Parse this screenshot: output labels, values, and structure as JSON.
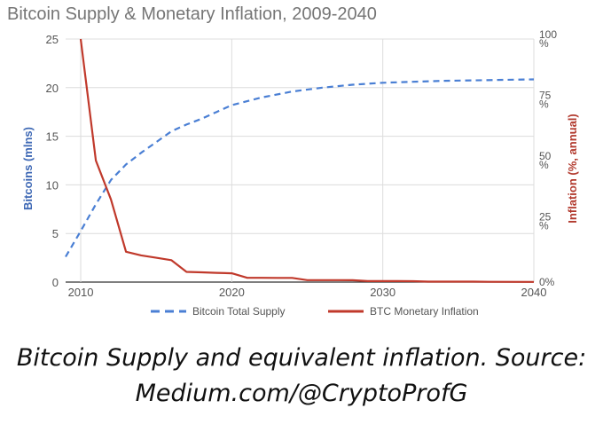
{
  "chart_data": {
    "type": "line",
    "title": "Bitcoin Supply & Monetary Inflation, 2009-2040",
    "xlabel": "",
    "y_left_label": "Bitcoins (mlns)",
    "y_right_label": "Inflation (%, annual)",
    "xlim": [
      2009,
      2040
    ],
    "ylim_left": [
      0,
      25
    ],
    "ylim_right": [
      0,
      100
    ],
    "x_ticks": [
      "2010",
      "2020",
      "2030",
      "2040"
    ],
    "y_left_ticks": [
      "0",
      "5",
      "10",
      "15",
      "20",
      "25"
    ],
    "y_right_ticks": [
      {
        "value": 0,
        "lines": [
          "0%"
        ]
      },
      {
        "value": 25,
        "lines": [
          "25",
          "%"
        ]
      },
      {
        "value": 50,
        "lines": [
          "50",
          "%"
        ]
      },
      {
        "value": 75,
        "lines": [
          "75",
          "%"
        ]
      },
      {
        "value": 100,
        "lines": [
          "100",
          "%"
        ]
      }
    ],
    "grid": true,
    "legend_position": "bottom",
    "series": [
      {
        "name": "Bitcoin Total Supply",
        "axis": "left",
        "style": "dashed",
        "color": "#4a7fd4",
        "points": [
          [
            2009,
            2.6
          ],
          [
            2010,
            5.25
          ],
          [
            2011,
            8.0
          ],
          [
            2012,
            10.5
          ],
          [
            2013,
            12.1
          ],
          [
            2014,
            13.3
          ],
          [
            2015,
            14.4
          ],
          [
            2016,
            15.5
          ],
          [
            2017,
            16.2
          ],
          [
            2018,
            16.8
          ],
          [
            2019,
            17.5
          ],
          [
            2020,
            18.2
          ],
          [
            2022,
            19.0
          ],
          [
            2024,
            19.6
          ],
          [
            2026,
            20.0
          ],
          [
            2028,
            20.3
          ],
          [
            2030,
            20.5
          ],
          [
            2032,
            20.6
          ],
          [
            2034,
            20.7
          ],
          [
            2036,
            20.75
          ],
          [
            2038,
            20.8
          ],
          [
            2040,
            20.85
          ]
        ]
      },
      {
        "name": "BTC Monetary Inflation",
        "axis": "right",
        "style": "solid",
        "color": "#c0392b",
        "points": [
          [
            2010,
            100
          ],
          [
            2011,
            50
          ],
          [
            2012,
            34
          ],
          [
            2013,
            12.5
          ],
          [
            2014,
            11
          ],
          [
            2015,
            10
          ],
          [
            2016,
            9
          ],
          [
            2017,
            4.2
          ],
          [
            2018,
            4
          ],
          [
            2019,
            3.8
          ],
          [
            2020,
            3.6
          ],
          [
            2021,
            1.8
          ],
          [
            2022,
            1.75
          ],
          [
            2023,
            1.7
          ],
          [
            2024,
            1.7
          ],
          [
            2025,
            0.8
          ],
          [
            2026,
            0.8
          ],
          [
            2027,
            0.8
          ],
          [
            2028,
            0.75
          ],
          [
            2029,
            0.4
          ],
          [
            2030,
            0.4
          ],
          [
            2031,
            0.4
          ],
          [
            2032,
            0.35
          ],
          [
            2033,
            0.2
          ],
          [
            2036,
            0.18
          ],
          [
            2037,
            0.1
          ],
          [
            2040,
            0.08
          ]
        ]
      }
    ]
  },
  "caption": {
    "line1": "Bitcoin Supply and equivalent inflation. Source:",
    "line2": "Medium.com/@CryptoProfG"
  }
}
